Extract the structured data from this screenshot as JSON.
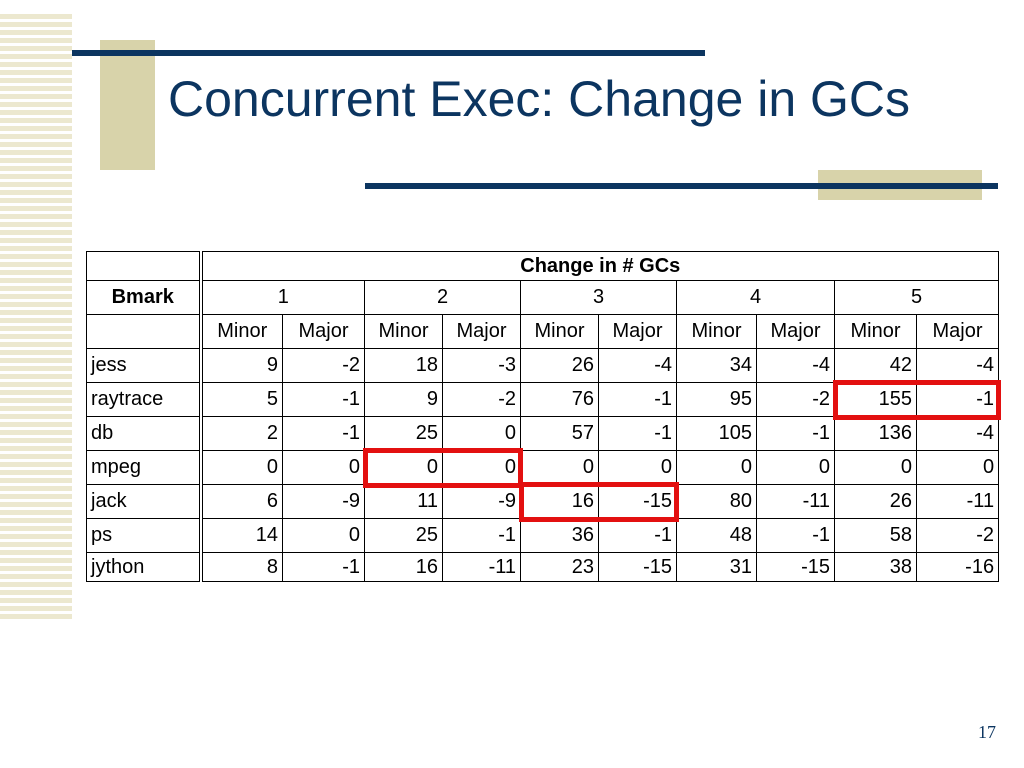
{
  "slide": {
    "title": "Concurrent Exec: Change in GCs",
    "page_number": "17",
    "accent_colors": {
      "navy": "#0c3560",
      "tan": "#d8d3aa",
      "highlight": "#e31010"
    }
  },
  "table": {
    "group_header": "Change in # GCs",
    "bmark_label": "Bmark",
    "levels": [
      "1",
      "2",
      "3",
      "4",
      "5"
    ],
    "sub_headers": [
      "Minor",
      "Major",
      "Minor",
      "Major",
      "Minor",
      "Major",
      "Minor",
      "Major",
      "Minor",
      "Major"
    ],
    "rows": [
      {
        "name": "jess",
        "values": [
          "9",
          "-2",
          "18",
          "-3",
          "26",
          "-4",
          "34",
          "-4",
          "42",
          "-4"
        ]
      },
      {
        "name": "raytrace",
        "values": [
          "5",
          "-1",
          "9",
          "-2",
          "76",
          "-1",
          "95",
          "-2",
          "155",
          "-1"
        ]
      },
      {
        "name": "db",
        "values": [
          "2",
          "-1",
          "25",
          "0",
          "57",
          "-1",
          "105",
          "-1",
          "136",
          "-4"
        ]
      },
      {
        "name": "mpeg",
        "values": [
          "0",
          "0",
          "0",
          "0",
          "0",
          "0",
          "0",
          "0",
          "0",
          "0"
        ]
      },
      {
        "name": "jack",
        "values": [
          "6",
          "-9",
          "11",
          "-9",
          "16",
          "-15",
          "80",
          "-11",
          "26",
          "-11"
        ]
      },
      {
        "name": "ps",
        "values": [
          "14",
          "0",
          "25",
          "-1",
          "36",
          "-1",
          "48",
          "-1",
          "58",
          "-2"
        ]
      },
      {
        "name": "jython",
        "values": [
          "8",
          "-1",
          "16",
          "-11",
          "23",
          "-15",
          "31",
          "-15",
          "38",
          "-16"
        ]
      }
    ]
  }
}
